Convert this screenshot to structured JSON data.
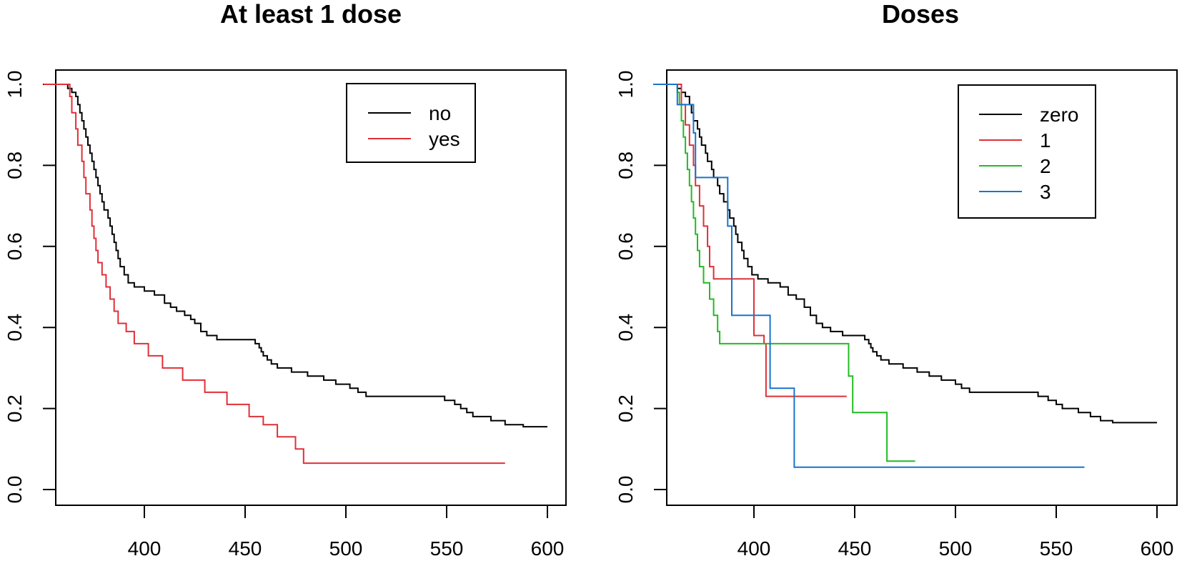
{
  "chart_data": [
    {
      "type": "line",
      "title": "At least 1 dose",
      "xlabel": "",
      "ylabel": "",
      "xlim": [
        350,
        605
      ],
      "ylim": [
        -0.04,
        1.02
      ],
      "xticks": [
        400,
        450,
        500,
        550,
        600
      ],
      "xtick_labels": [
        "400",
        "450",
        "500",
        "550",
        "600"
      ],
      "yticks": [
        0.0,
        0.2,
        0.4,
        0.6,
        0.8,
        1.0
      ],
      "ytick_labels": [
        "0.0",
        "0.2",
        "0.4",
        "0.6",
        "0.8",
        "1.0"
      ],
      "grid": false,
      "legend_position": "top-right",
      "series": [
        {
          "name": "no",
          "color": "#000000",
          "step": true,
          "points": [
            [
              350,
              1.0
            ],
            [
              362,
              0.99
            ],
            [
              364,
              0.98
            ],
            [
              366,
              0.97
            ],
            [
              367,
              0.95
            ],
            [
              368,
              0.93
            ],
            [
              369,
              0.91
            ],
            [
              370,
              0.89
            ],
            [
              371,
              0.87
            ],
            [
              372,
              0.85
            ],
            [
              373,
              0.83
            ],
            [
              374,
              0.81
            ],
            [
              375,
              0.79
            ],
            [
              376,
              0.77
            ],
            [
              377,
              0.75
            ],
            [
              378,
              0.73
            ],
            [
              379,
              0.71
            ],
            [
              380,
              0.69
            ],
            [
              382,
              0.67
            ],
            [
              383,
              0.65
            ],
            [
              384,
              0.63
            ],
            [
              385,
              0.61
            ],
            [
              386,
              0.59
            ],
            [
              387,
              0.57
            ],
            [
              388,
              0.55
            ],
            [
              390,
              0.53
            ],
            [
              392,
              0.51
            ],
            [
              395,
              0.5
            ],
            [
              400,
              0.49
            ],
            [
              405,
              0.48
            ],
            [
              410,
              0.46
            ],
            [
              413,
              0.45
            ],
            [
              416,
              0.44
            ],
            [
              420,
              0.43
            ],
            [
              423,
              0.42
            ],
            [
              425,
              0.41
            ],
            [
              428,
              0.39
            ],
            [
              431,
              0.38
            ],
            [
              436,
              0.37
            ],
            [
              444,
              0.37
            ],
            [
              455,
              0.36
            ],
            [
              457,
              0.35
            ],
            [
              458,
              0.34
            ],
            [
              459,
              0.33
            ],
            [
              461,
              0.32
            ],
            [
              463,
              0.31
            ],
            [
              466,
              0.3
            ],
            [
              473,
              0.29
            ],
            [
              481,
              0.28
            ],
            [
              489,
              0.27
            ],
            [
              495,
              0.26
            ],
            [
              502,
              0.25
            ],
            [
              506,
              0.24
            ],
            [
              510,
              0.23
            ],
            [
              538,
              0.23
            ],
            [
              549,
              0.22
            ],
            [
              554,
              0.21
            ],
            [
              557,
              0.2
            ],
            [
              560,
              0.19
            ],
            [
              563,
              0.18
            ],
            [
              572,
              0.17
            ],
            [
              579,
              0.16
            ],
            [
              588,
              0.155
            ],
            [
              600,
              0.155
            ]
          ]
        },
        {
          "name": "yes",
          "color": "#DF3038",
          "step": true,
          "points": [
            [
              350,
              1.0
            ],
            [
              363,
              0.97
            ],
            [
              364,
              0.93
            ],
            [
              366,
              0.89
            ],
            [
              367,
              0.85
            ],
            [
              369,
              0.81
            ],
            [
              370,
              0.77
            ],
            [
              371,
              0.73
            ],
            [
              373,
              0.69
            ],
            [
              374,
              0.65
            ],
            [
              375,
              0.62
            ],
            [
              376,
              0.59
            ],
            [
              377,
              0.56
            ],
            [
              379,
              0.53
            ],
            [
              381,
              0.5
            ],
            [
              383,
              0.47
            ],
            [
              385,
              0.44
            ],
            [
              387,
              0.41
            ],
            [
              391,
              0.39
            ],
            [
              395,
              0.36
            ],
            [
              402,
              0.33
            ],
            [
              409,
              0.3
            ],
            [
              419,
              0.27
            ],
            [
              430,
              0.24
            ],
            [
              441,
              0.21
            ],
            [
              452,
              0.18
            ],
            [
              459,
              0.16
            ],
            [
              466,
              0.13
            ],
            [
              475,
              0.1
            ],
            [
              479,
              0.065
            ],
            [
              579,
              0.065
            ]
          ]
        }
      ]
    },
    {
      "type": "line",
      "title": "Doses",
      "xlabel": "",
      "ylabel": "",
      "xlim": [
        350,
        605
      ],
      "ylim": [
        -0.04,
        1.02
      ],
      "xticks": [
        400,
        450,
        500,
        550,
        600
      ],
      "xtick_labels": [
        "400",
        "450",
        "500",
        "550",
        "600"
      ],
      "yticks": [
        0.0,
        0.2,
        0.4,
        0.6,
        0.8,
        1.0
      ],
      "ytick_labels": [
        "0.0",
        "0.2",
        "0.4",
        "0.6",
        "0.8",
        "1.0"
      ],
      "grid": false,
      "legend_position": "top-right",
      "series": [
        {
          "name": "zero",
          "color": "#000000",
          "step": true,
          "points": [
            [
              350,
              1.0
            ],
            [
              362,
              0.99
            ],
            [
              364,
              0.98
            ],
            [
              366,
              0.97
            ],
            [
              368,
              0.95
            ],
            [
              369,
              0.93
            ],
            [
              370,
              0.91
            ],
            [
              372,
              0.89
            ],
            [
              373,
              0.87
            ],
            [
              374,
              0.85
            ],
            [
              376,
              0.83
            ],
            [
              377,
              0.81
            ],
            [
              379,
              0.79
            ],
            [
              380,
              0.77
            ],
            [
              382,
              0.75
            ],
            [
              383,
              0.73
            ],
            [
              385,
              0.71
            ],
            [
              387,
              0.69
            ],
            [
              388,
              0.67
            ],
            [
              390,
              0.65
            ],
            [
              391,
              0.63
            ],
            [
              392,
              0.61
            ],
            [
              394,
              0.59
            ],
            [
              395,
              0.57
            ],
            [
              397,
              0.55
            ],
            [
              399,
              0.53
            ],
            [
              402,
              0.52
            ],
            [
              407,
              0.51
            ],
            [
              413,
              0.5
            ],
            [
              417,
              0.48
            ],
            [
              421,
              0.47
            ],
            [
              425,
              0.45
            ],
            [
              428,
              0.43
            ],
            [
              431,
              0.41
            ],
            [
              434,
              0.4
            ],
            [
              438,
              0.39
            ],
            [
              444,
              0.38
            ],
            [
              455,
              0.37
            ],
            [
              457,
              0.36
            ],
            [
              458,
              0.35
            ],
            [
              459,
              0.34
            ],
            [
              461,
              0.33
            ],
            [
              463,
              0.32
            ],
            [
              467,
              0.31
            ],
            [
              474,
              0.3
            ],
            [
              481,
              0.29
            ],
            [
              487,
              0.28
            ],
            [
              493,
              0.27
            ],
            [
              500,
              0.26
            ],
            [
              503,
              0.25
            ],
            [
              507,
              0.24
            ],
            [
              530,
              0.24
            ],
            [
              541,
              0.23
            ],
            [
              546,
              0.22
            ],
            [
              550,
              0.21
            ],
            [
              553,
              0.2
            ],
            [
              561,
              0.19
            ],
            [
              567,
              0.18
            ],
            [
              572,
              0.17
            ],
            [
              578,
              0.165
            ],
            [
              600,
              0.165
            ]
          ]
        },
        {
          "name": "1",
          "color": "#DF3038",
          "step": true,
          "points": [
            [
              350,
              1.0
            ],
            [
              364,
              0.95
            ],
            [
              366,
              0.9
            ],
            [
              368,
              0.85
            ],
            [
              370,
              0.8
            ],
            [
              371,
              0.75
            ],
            [
              373,
              0.7
            ],
            [
              375,
              0.65
            ],
            [
              377,
              0.6
            ],
            [
              378,
              0.55
            ],
            [
              380,
              0.52
            ],
            [
              398,
              0.52
            ],
            [
              400,
              0.38
            ],
            [
              405,
              0.36
            ],
            [
              406,
              0.23
            ],
            [
              446,
              0.23
            ]
          ]
        },
        {
          "name": "2",
          "color": "#22BB22",
          "step": true,
          "points": [
            [
              350,
              1.0
            ],
            [
              362,
              0.98
            ],
            [
              363,
              0.95
            ],
            [
              364,
              0.91
            ],
            [
              365,
              0.87
            ],
            [
              366,
              0.83
            ],
            [
              367,
              0.79
            ],
            [
              368,
              0.75
            ],
            [
              369,
              0.71
            ],
            [
              370,
              0.67
            ],
            [
              371,
              0.63
            ],
            [
              372,
              0.59
            ],
            [
              373,
              0.55
            ],
            [
              375,
              0.51
            ],
            [
              378,
              0.47
            ],
            [
              380,
              0.43
            ],
            [
              382,
              0.39
            ],
            [
              383,
              0.36
            ],
            [
              446,
              0.36
            ],
            [
              447,
              0.28
            ],
            [
              449,
              0.19
            ],
            [
              464,
              0.19
            ],
            [
              466,
              0.07
            ],
            [
              480,
              0.07
            ]
          ]
        },
        {
          "name": "3",
          "color": "#1874CD",
          "step": true,
          "points": [
            [
              350,
              1.0
            ],
            [
              362,
              0.95
            ],
            [
              369,
              0.95
            ],
            [
              370,
              0.88
            ],
            [
              371,
              0.77
            ],
            [
              385,
              0.77
            ],
            [
              387,
              0.65
            ],
            [
              389,
              0.43
            ],
            [
              406,
              0.43
            ],
            [
              408,
              0.25
            ],
            [
              419,
              0.25
            ],
            [
              420,
              0.055
            ],
            [
              564,
              0.055
            ]
          ]
        }
      ]
    }
  ]
}
